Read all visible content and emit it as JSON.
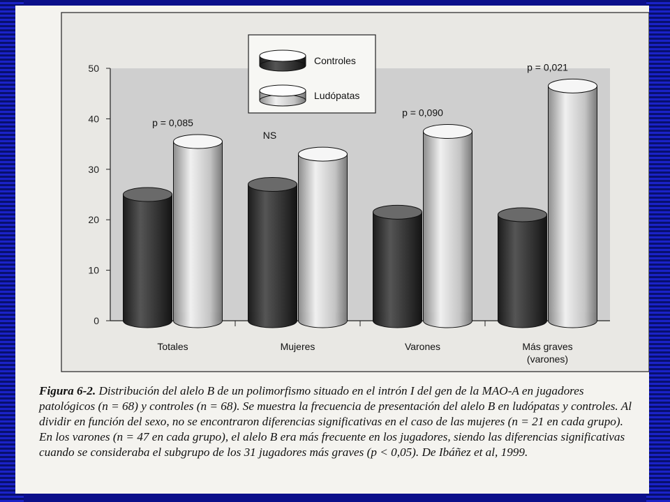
{
  "chart_data": {
    "type": "bar",
    "categories": [
      "Totales",
      "Mujeres",
      "Varones",
      "Más graves\n(varones)"
    ],
    "series": [
      {
        "name": "Controles",
        "values": [
          25,
          27,
          21.5,
          21
        ],
        "color": "#3a3a3a"
      },
      {
        "name": "Ludópatas",
        "values": [
          35.5,
          33,
          37.5,
          46.5
        ],
        "color": "#c9c9c9"
      }
    ],
    "annotations": [
      "p = 0,085",
      "NS",
      "p = 0,090",
      "p = 0,021"
    ],
    "ylim": [
      0,
      50
    ],
    "yticks": [
      0,
      10,
      20,
      30,
      40,
      50
    ],
    "legend": "top-center",
    "grid": false,
    "plot_background": "#cfcfcf"
  },
  "caption": {
    "figure_label": "Figura 6-2.",
    "text": "Distribución del alelo B de un polimorfismo situado en el intrón I del gen de la MAO-A en jugadores patológicos (n = 68) y controles (n = 68). Se muestra la frecuencia de presentación del alelo B en ludópatas y controles. Al dividir en función del sexo, no se encontraron diferencias significativas en el caso de las mujeres (n = 21 en cada grupo). En los varones (n = 47 en cada grupo), el alelo B era más frecuente en los jugadores, siendo las diferencias significativas cuando se consideraba el subgrupo de los 31 jugadores más graves (p < 0,05). De Ibáñez et al, 1999."
  }
}
